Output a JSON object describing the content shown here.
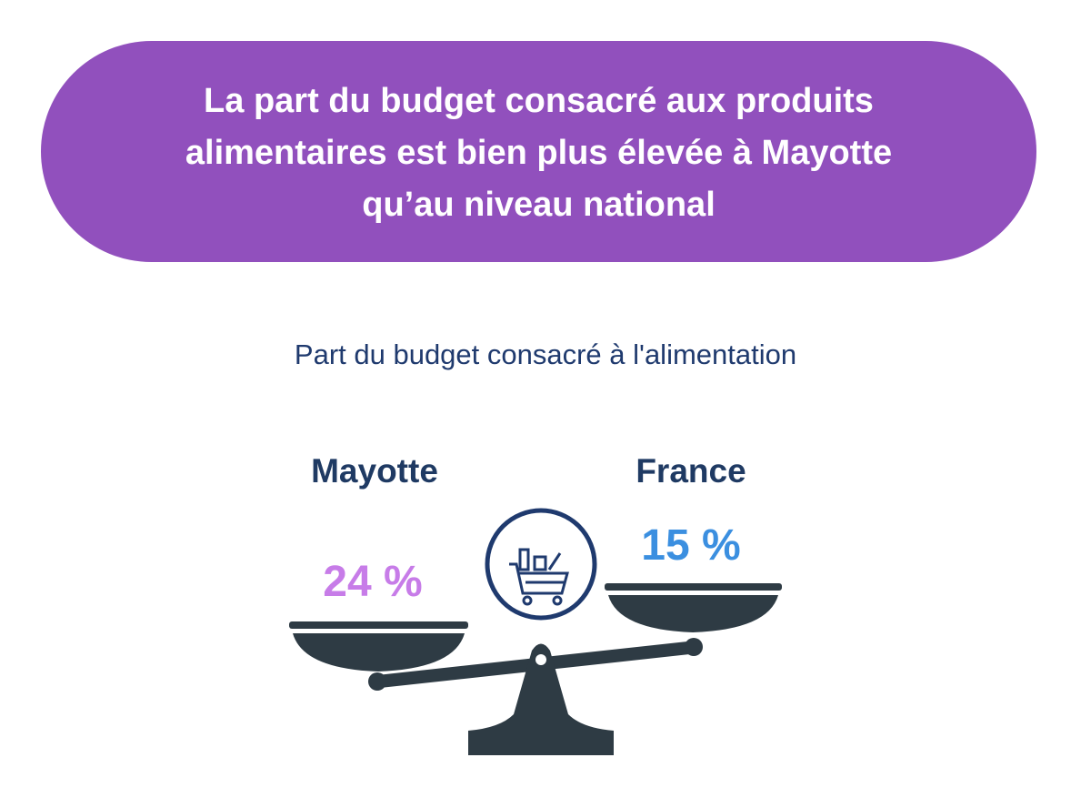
{
  "header": {
    "title_lines": [
      "La part du budget consacré aux produits",
      "alimentaires est bien plus élevée à Mayotte",
      "qu’au niveau national"
    ]
  },
  "subtitle": "Part du budget consacré à l'alimentation",
  "left": {
    "label": "Mayotte",
    "value": "24 %"
  },
  "right": {
    "label": "France",
    "value": "15 %"
  }
}
